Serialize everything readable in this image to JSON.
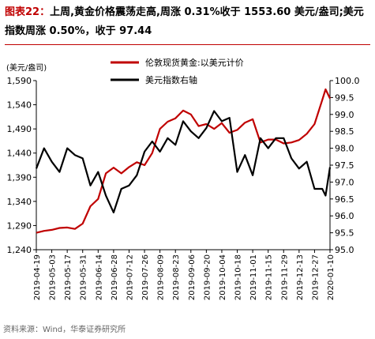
{
  "title": {
    "label": "图表22：",
    "text": "上周,黄金价格震荡走高,周涨 0.31%收于 1553.60 美元/盎司;美元指数周涨 0.50%，收于 97.44"
  },
  "source": "资料来源：Wind，华泰证券研究所",
  "colors": {
    "gold": "#c00000",
    "dxy": "#000000",
    "accent": "#c00000"
  },
  "chart_data": {
    "type": "line",
    "y_left_unit": "(美元/盎司)",
    "y_left_ticks": [
      "1,240",
      "1,290",
      "1,340",
      "1,390",
      "1,440",
      "1,490",
      "1,540",
      "1,590"
    ],
    "y_left_range": [
      1240,
      1590
    ],
    "y_right_ticks": [
      "95.0",
      "95.5",
      "96.0",
      "96.5",
      "97.0",
      "97.5",
      "98.0",
      "98.5",
      "99.0",
      "99.5",
      "100.0"
    ],
    "y_right_range": [
      95.0,
      100.0
    ],
    "x_ticks": [
      "2019-04-19",
      "2019-05-03",
      "2019-05-17",
      "2019-05-31",
      "2019-06-14",
      "2019-06-28",
      "2019-07-12",
      "2019-07-26",
      "2019-08-09",
      "2019-08-23",
      "2019-09-06",
      "2019-09-20",
      "2019-10-04",
      "2019-10-18",
      "2019-11-01",
      "2019-11-15",
      "2019-11-29",
      "2019-12-13",
      "2019-12-27",
      "2020-01-10"
    ],
    "series": [
      {
        "name": "伦敦现货黄金:以美元计价",
        "axis": "left",
        "color": "#c00000",
        "x": [
          "2019-04-19",
          "2019-04-26",
          "2019-05-03",
          "2019-05-10",
          "2019-05-17",
          "2019-05-24",
          "2019-05-31",
          "2019-06-07",
          "2019-06-14",
          "2019-06-21",
          "2019-06-28",
          "2019-07-05",
          "2019-07-12",
          "2019-07-19",
          "2019-07-26",
          "2019-08-02",
          "2019-08-09",
          "2019-08-16",
          "2019-08-23",
          "2019-08-30",
          "2019-09-06",
          "2019-09-13",
          "2019-09-20",
          "2019-09-27",
          "2019-10-04",
          "2019-10-11",
          "2019-10-18",
          "2019-10-25",
          "2019-11-01",
          "2019-11-08",
          "2019-11-15",
          "2019-11-22",
          "2019-11-29",
          "2019-12-06",
          "2019-12-13",
          "2019-12-20",
          "2019-12-27",
          "2020-01-03",
          "2020-01-06",
          "2020-01-10"
        ],
        "values": [
          1275,
          1279,
          1281,
          1285,
          1286,
          1283,
          1294,
          1330,
          1345,
          1398,
          1410,
          1398,
          1411,
          1421,
          1415,
          1440,
          1490,
          1505,
          1512,
          1528,
          1520,
          1496,
          1500,
          1490,
          1502,
          1482,
          1488,
          1503,
          1510,
          1462,
          1468,
          1468,
          1460,
          1462,
          1467,
          1480,
          1500,
          1550,
          1572,
          1553
        ]
      },
      {
        "name": "美元指数右轴",
        "axis": "right",
        "color": "#000000",
        "x": [
          "2019-04-19",
          "2019-04-26",
          "2019-05-03",
          "2019-05-10",
          "2019-05-17",
          "2019-05-24",
          "2019-05-31",
          "2019-06-07",
          "2019-06-14",
          "2019-06-21",
          "2019-06-28",
          "2019-07-05",
          "2019-07-12",
          "2019-07-19",
          "2019-07-26",
          "2019-08-02",
          "2019-08-09",
          "2019-08-16",
          "2019-08-23",
          "2019-08-30",
          "2019-09-06",
          "2019-09-13",
          "2019-09-20",
          "2019-09-27",
          "2019-10-04",
          "2019-10-11",
          "2019-10-18",
          "2019-10-25",
          "2019-11-01",
          "2019-11-08",
          "2019-11-15",
          "2019-11-22",
          "2019-11-29",
          "2019-12-06",
          "2019-12-13",
          "2019-12-20",
          "2019-12-27",
          "2020-01-03",
          "2020-01-06",
          "2020-01-10"
        ],
        "values": [
          97.4,
          98.0,
          97.6,
          97.3,
          98.0,
          97.8,
          97.7,
          96.9,
          97.3,
          96.6,
          96.1,
          96.8,
          96.9,
          97.2,
          97.9,
          98.2,
          97.9,
          98.3,
          98.1,
          98.8,
          98.5,
          98.3,
          98.6,
          99.1,
          98.8,
          98.9,
          97.3,
          97.8,
          97.2,
          98.3,
          98.0,
          98.3,
          98.3,
          97.7,
          97.4,
          97.6,
          96.8,
          96.8,
          96.6,
          97.44
        ]
      }
    ]
  }
}
